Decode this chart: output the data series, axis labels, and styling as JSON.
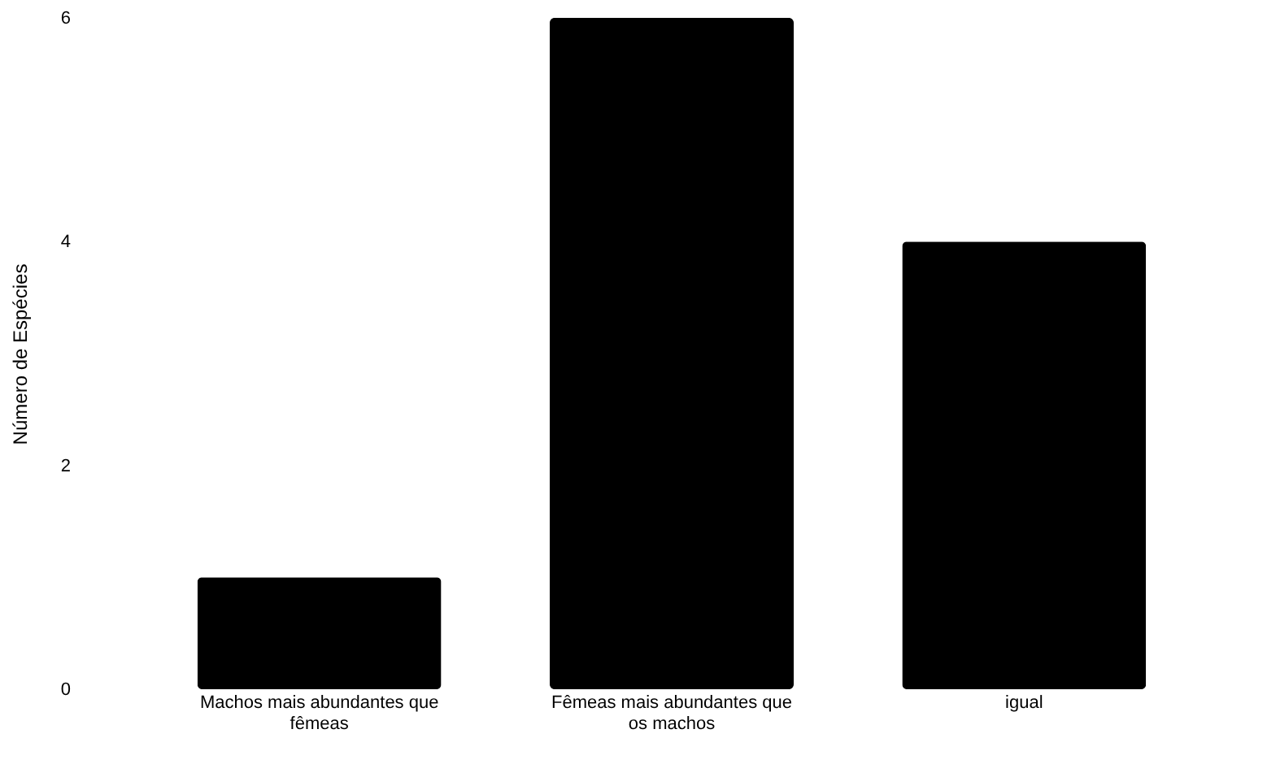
{
  "chart_data": {
    "type": "bar",
    "ylabel": "Número de Espécies",
    "categories": [
      "Machos mais abundantes que fêmeas",
      "Fêmeas mais abundantes que os machos",
      "igual"
    ],
    "values": [
      1,
      6,
      4
    ],
    "color": "#000000",
    "ylim": [
      0,
      6
    ],
    "yticks": [
      0,
      2,
      4,
      6
    ],
    "grid": false
  }
}
